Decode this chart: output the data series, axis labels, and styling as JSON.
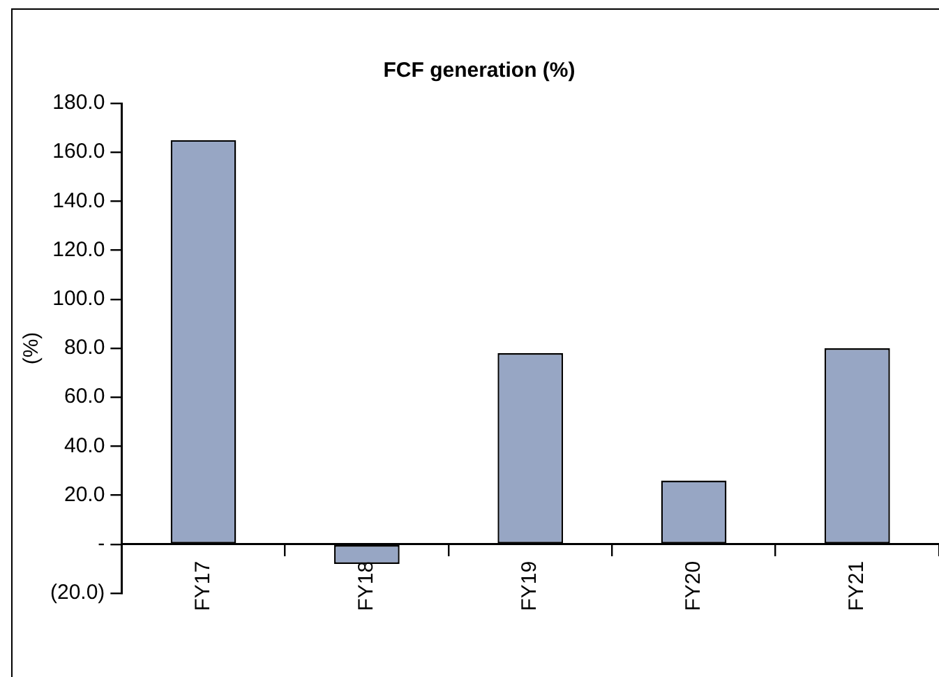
{
  "chart_data": {
    "type": "bar",
    "title": "FCF generation (%)",
    "ylabel": "(%)",
    "categories": [
      "FY17",
      "FY18",
      "FY19",
      "FY20",
      "FY21"
    ],
    "values": [
      165,
      -8,
      78,
      26,
      80
    ],
    "color": "#97a6c4",
    "ylim": [
      -20,
      180
    ],
    "yticks": [
      {
        "value": -20,
        "label": "(20.0)"
      },
      {
        "value": 0,
        "label": "-"
      },
      {
        "value": 20,
        "label": "20.0"
      },
      {
        "value": 40,
        "label": "40.0"
      },
      {
        "value": 60,
        "label": "60.0"
      },
      {
        "value": 80,
        "label": "80.0"
      },
      {
        "value": 100,
        "label": "100.0"
      },
      {
        "value": 120,
        "label": "120.0"
      },
      {
        "value": 140,
        "label": "140.0"
      },
      {
        "value": 160,
        "label": "160.0"
      },
      {
        "value": 180,
        "label": "180.0"
      }
    ],
    "grid": false,
    "legend": false
  }
}
